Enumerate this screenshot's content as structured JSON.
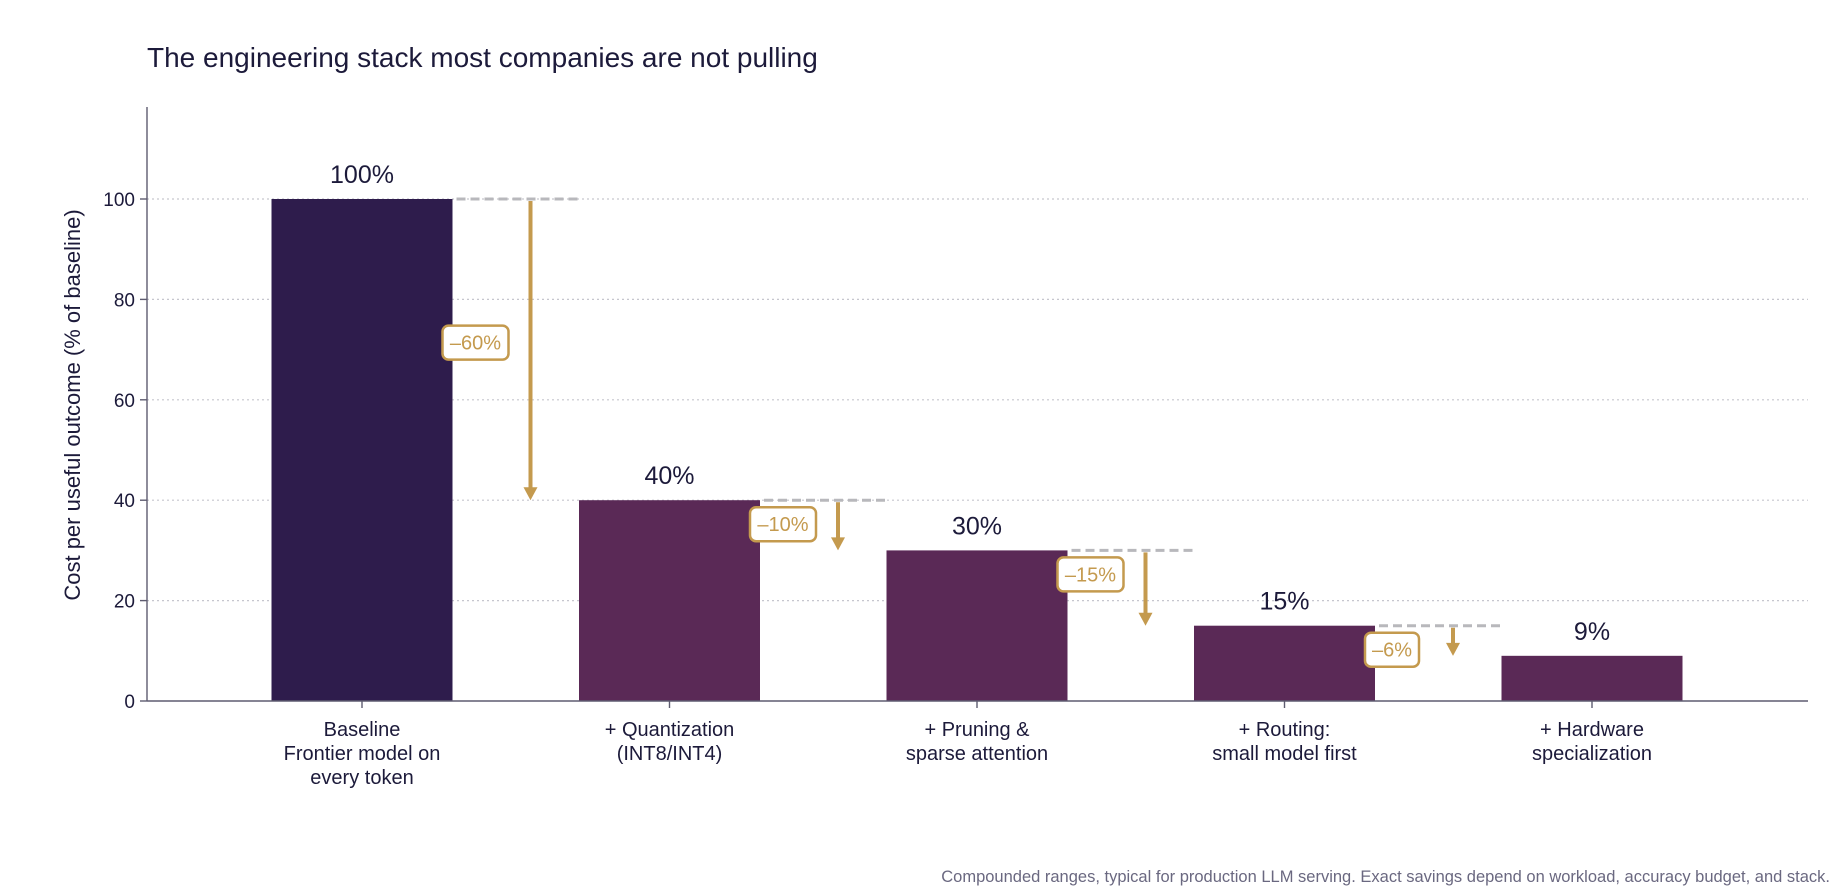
{
  "chart_data": {
    "type": "bar",
    "title": "The engineering stack most companies are not pulling",
    "ylabel": "Cost per useful outcome (% of baseline)",
    "xlabel": "",
    "ylim": [
      0,
      118
    ],
    "yticks": [
      0,
      20,
      40,
      60,
      80,
      100
    ],
    "grid": true,
    "categories": [
      [
        "Baseline",
        "Frontier model on",
        "every token"
      ],
      [
        "+ Quantization",
        "(INT8/INT4)"
      ],
      [
        "+ Pruning &",
        "sparse attention"
      ],
      [
        "+ Routing:",
        "small model first"
      ],
      [
        "+ Hardware",
        "specialization"
      ]
    ],
    "values": [
      100,
      40,
      30,
      15,
      9
    ],
    "value_labels": [
      "100%",
      "40%",
      "30%",
      "15%",
      "9%"
    ],
    "deltas": [
      {
        "label": "–60%",
        "from": 100,
        "to": 40
      },
      {
        "label": "–10%",
        "from": 40,
        "to": 30
      },
      {
        "label": "–15%",
        "from": 30,
        "to": 15
      },
      {
        "label": "–6%",
        "from": 15,
        "to": 9
      }
    ],
    "footnote": "Compounded ranges, typical for production LLM serving. Exact savings depend on workload, accuracy budget, and stack.",
    "colors": {
      "baseline_bar": "#2e1c4c",
      "bar": "#5a2956",
      "delta": "#c49a4e",
      "connector": "#b8b8bc",
      "grid": "#c6c6ce",
      "axis": "#5e5c70",
      "text": "#1c1a3a"
    }
  }
}
